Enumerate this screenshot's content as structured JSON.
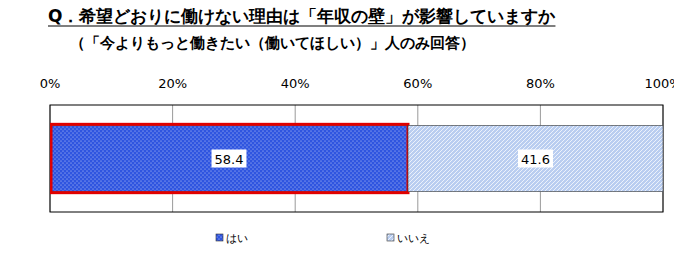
{
  "chart_data": {
    "type": "bar",
    "orientation": "horizontal",
    "stacked": true,
    "title": "Q．希望どおりに働けない理由は「年収の壁」が影響していますか",
    "subtitle": "（「今よりもっと働きたい（働いてほしい）」人のみ回答）",
    "categories": [
      null
    ],
    "series": [
      {
        "name": "はい",
        "color": "#2f55e0",
        "values": [
          58.4
        ]
      },
      {
        "name": "いいえ",
        "color": "#b9cdf0",
        "values": [
          41.6
        ]
      }
    ],
    "xlim": [
      0,
      100
    ],
    "xticks": [
      {
        "value": 0,
        "label": "0%"
      },
      {
        "value": 20,
        "label": "20%"
      },
      {
        "value": 40,
        "label": "40%"
      },
      {
        "value": 60,
        "label": "60%"
      },
      {
        "value": 80,
        "label": "80%"
      },
      {
        "value": 100,
        "label": "100%"
      }
    ],
    "grid": true,
    "data_labels": true,
    "legend": "bottom"
  }
}
